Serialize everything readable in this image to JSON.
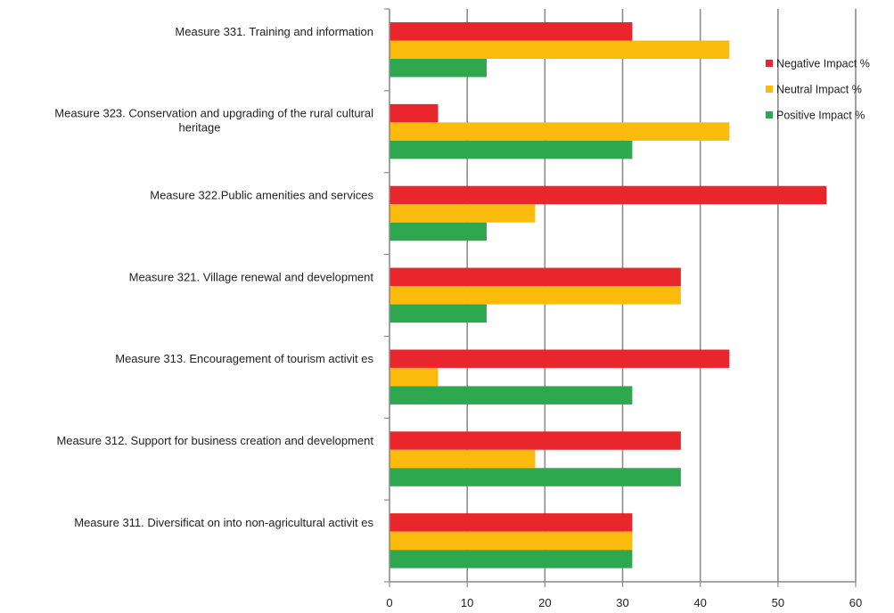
{
  "chart_data": {
    "type": "bar",
    "orientation": "horizontal",
    "categories": [
      [
        "Measure 331. Training and information"
      ],
      [
        "Measure 323. Conservation and upgrading of the rural cultural",
        "heritage"
      ],
      [
        "Measure 322.Public amenities and services"
      ],
      [
        "Measure 321. Village renewal and development"
      ],
      [
        "Measure 313. Encouragement of tourism activit es"
      ],
      [
        "Measure 312. Support for business creation and development"
      ],
      [
        "Measure 311. Diversificat on into non-agricultural activit es"
      ]
    ],
    "series": [
      {
        "name": "Negative Impact %",
        "color": "#e8262b",
        "values": [
          31.25,
          6.25,
          56.25,
          37.5,
          43.75,
          37.5,
          31.25
        ]
      },
      {
        "name": "Neutral Impact %",
        "color": "#fbbb0d",
        "values": [
          43.75,
          43.75,
          18.75,
          37.5,
          6.25,
          18.75,
          31.25
        ]
      },
      {
        "name": "Positive Impact %",
        "color": "#2ea84f",
        "values": [
          12.5,
          31.25,
          12.5,
          12.5,
          31.25,
          37.5,
          31.25
        ]
      }
    ],
    "xlim": [
      0,
      60
    ],
    "xticks": [
      "0",
      "10",
      "20",
      "30",
      "40",
      "50",
      "60"
    ],
    "grid": true,
    "legend_position": "top-right",
    "title": "",
    "xlabel": "",
    "ylabel": ""
  }
}
